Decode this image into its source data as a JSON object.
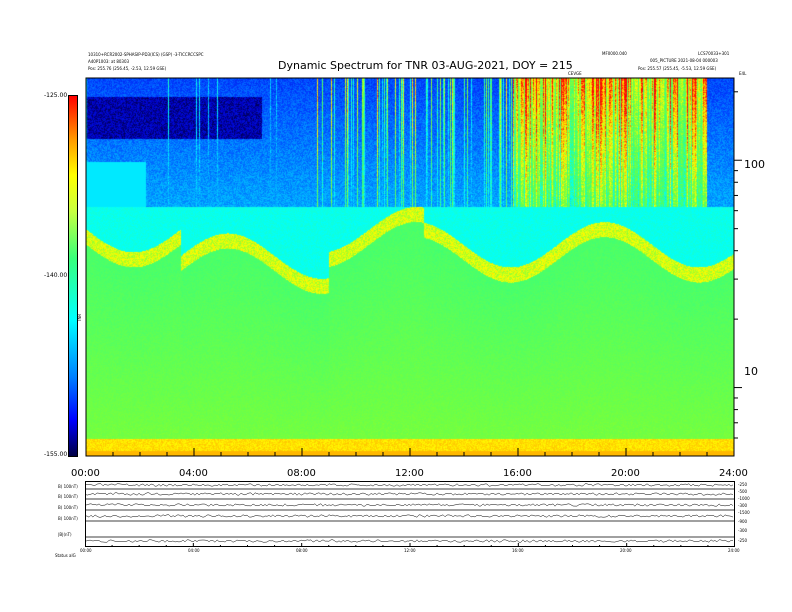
{
  "header": {
    "title": "Dynamic Spectrum for TNR 03-AUG-2021, DOY = 215",
    "left_line1": "10310+RCR2002-SPHASIP-PD3(ICS) (GSP) -3-TICCRCCSPC",
    "left_line2": "A40P1003: at 80303",
    "left_line3": "Pos: 255.76 (256.45, -2.53, 12.59 GSE)",
    "right_line1": "MF0000.040",
    "right_line2": "LCS70033+301",
    "right_line3": "005_PICTURE 2021-08-04 000003",
    "right_line4": "Pos: 255.57 (255.45, -5.53, 12.59 GSE)",
    "mid_label": "CEVGE",
    "right_small": "E4L"
  },
  "colorbar": {
    "ticks": [
      "-125.00",
      "-140.00",
      "-155.00"
    ],
    "label": "TNR"
  },
  "chart_data": {
    "type": "heatmap",
    "title": "Dynamic Spectrum for TNR 03-AUG-2021, DOY = 215",
    "x_ticks": [
      "00:00",
      "04:00",
      "08:00",
      "12:00",
      "16:00",
      "20:00",
      "24:00"
    ],
    "x_range_hours": [
      0,
      24
    ],
    "y_axis_scale": "log",
    "y_right_ticks": [
      "100",
      "10"
    ],
    "color_range": [
      -155,
      -125
    ],
    "colors": {
      "high": "#ff0000",
      "mid_high": "#ffff00",
      "mid": "#33ff66",
      "mid_low": "#00ffff",
      "low": "#0000ff",
      "floor": "#000033"
    }
  },
  "strip": {
    "left_labels": [
      "B( 100nT)",
      "B( 100nT)",
      "B( 100nT)",
      "B( 100nT)",
      "|B|(nT)"
    ],
    "right_labels": [
      "-250",
      "-500",
      "-1000",
      "-300",
      "-1500",
      "-900",
      "-300",
      "-250"
    ],
    "x_ticks": [
      "00:00",
      "04:00",
      "08:00",
      "12:00",
      "16:00",
      "20:00",
      "24:00"
    ],
    "footer": "Status  alG"
  }
}
